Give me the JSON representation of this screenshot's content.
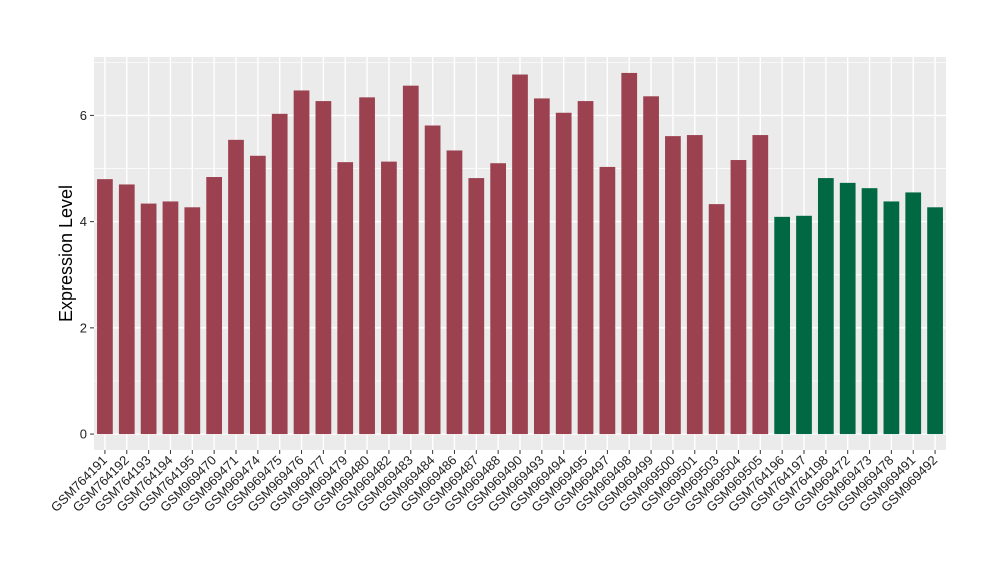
{
  "chart_data": {
    "type": "bar",
    "title": "",
    "xlabel": "",
    "ylabel": "Expression Level",
    "ylim": [
      -0.3,
      7.1
    ],
    "yticks": [
      0,
      2,
      4,
      6
    ],
    "grid": true,
    "colors": {
      "group_a": "#9b4150",
      "group_b": "#006843",
      "panel": "#ebebeb",
      "gridline": "#ffffff"
    },
    "categories": [
      "GSM764191",
      "GSM764192",
      "GSM764193",
      "GSM764194",
      "GSM764195",
      "GSM969470",
      "GSM969471",
      "GSM969474",
      "GSM969475",
      "GSM969476",
      "GSM969477",
      "GSM969479",
      "GSM969480",
      "GSM969482",
      "GSM969483",
      "GSM969484",
      "GSM969486",
      "GSM969487",
      "GSM969488",
      "GSM969490",
      "GSM969493",
      "GSM969494",
      "GSM969495",
      "GSM969497",
      "GSM969498",
      "GSM969499",
      "GSM969500",
      "GSM969501",
      "GSM969503",
      "GSM969504",
      "GSM969505",
      "GSM764196",
      "GSM764197",
      "GSM764198",
      "GSM969472",
      "GSM969473",
      "GSM969478",
      "GSM969491",
      "GSM969492"
    ],
    "values": [
      4.8,
      4.7,
      4.34,
      4.38,
      4.27,
      4.84,
      5.54,
      5.24,
      6.03,
      6.47,
      6.27,
      5.12,
      6.34,
      5.13,
      6.56,
      5.81,
      5.34,
      4.82,
      5.1,
      6.77,
      6.32,
      6.05,
      6.27,
      5.03,
      6.8,
      6.36,
      5.61,
      5.63,
      4.33,
      5.16,
      5.63,
      4.09,
      4.11,
      4.82,
      4.73,
      4.63,
      4.38,
      4.55,
      4.27
    ],
    "groups": [
      "a",
      "a",
      "a",
      "a",
      "a",
      "a",
      "a",
      "a",
      "a",
      "a",
      "a",
      "a",
      "a",
      "a",
      "a",
      "a",
      "a",
      "a",
      "a",
      "a",
      "a",
      "a",
      "a",
      "a",
      "a",
      "a",
      "a",
      "a",
      "a",
      "a",
      "a",
      "b",
      "b",
      "b",
      "b",
      "b",
      "b",
      "b",
      "b"
    ]
  }
}
